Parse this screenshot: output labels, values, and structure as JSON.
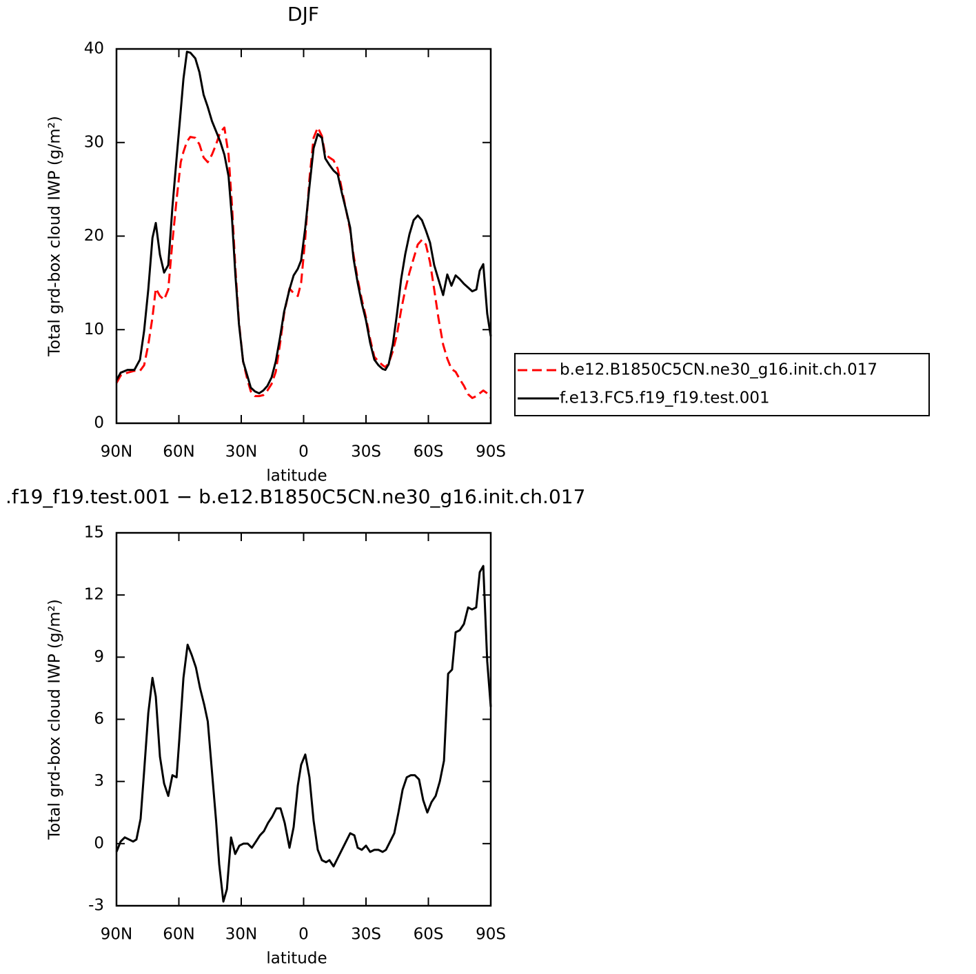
{
  "chart_data": [
    {
      "type": "line",
      "title": "DJF",
      "xlabel": "latitude",
      "ylabel": "Total grd-box cloud IWP (g/m²)",
      "xlim": [
        90,
        -90
      ],
      "ylim": [
        0,
        40
      ],
      "xticks": [
        {
          "value": 90,
          "label": "90N"
        },
        {
          "value": 60,
          "label": "60N"
        },
        {
          "value": 30,
          "label": "30N"
        },
        0,
        {
          "value": -30,
          "label": "30S"
        },
        {
          "value": -60,
          "label": "60S"
        },
        {
          "value": -90,
          "label": "90S"
        }
      ],
      "yticks": [
        0,
        10,
        20,
        30,
        40
      ],
      "legend": "right",
      "x": [
        90,
        88.0,
        84.7,
        81.4,
        78.7,
        76.7,
        74.7,
        72.7,
        71.1,
        69.1,
        67.1,
        65.1,
        63.1,
        61.1,
        59.1,
        57.8,
        56.1,
        54.5,
        52.1,
        50.1,
        48.1,
        46.1,
        44.1,
        42.1,
        40.1,
        38.1,
        36.1,
        34.4,
        32.8,
        31.1,
        29.1,
        27.1,
        25.4,
        23.4,
        21.4,
        19.4,
        17.4,
        15.4,
        13.4,
        11.4,
        9.4,
        6.8,
        4.8,
        2.8,
        1.2,
        -0.8,
        -2.8,
        -4.8,
        -6.8,
        -8.8,
        -10.4,
        -12.4,
        -14.4,
        -16.4,
        -18.4,
        -20.4,
        -22.4,
        -24.0,
        -26.0,
        -28.0,
        -30.0,
        -32.0,
        -34.0,
        -36.0,
        -38.0,
        -39.3,
        -40.9,
        -42.9,
        -44.9,
        -46.9,
        -48.9,
        -50.9,
        -52.9,
        -54.9,
        -56.9,
        -58.8,
        -60.8,
        -62.8,
        -64.8,
        -67.1,
        -69.1,
        -71.1,
        -73.1,
        -75.1,
        -77.1,
        -79.1,
        -81.1,
        -83.1,
        -84.7,
        -86.4,
        -88.3,
        -90
      ],
      "series": [
        {
          "name": "b.e12.B1850C5CN.ne30_g16.init.ch.017",
          "color": "#ff0000",
          "dashed": true,
          "values": [
            4.3,
            5.1,
            5.4,
            5.6,
            5.6,
            6.2,
            8.4,
            11.3,
            14.4,
            13.6,
            13.2,
            14.3,
            19.4,
            23.9,
            27.9,
            29.0,
            30.1,
            30.6,
            30.5,
            29.8,
            28.4,
            27.9,
            28.7,
            29.8,
            31.1,
            31.6,
            28.7,
            23.1,
            16.5,
            10.8,
            6.6,
            4.7,
            3.4,
            2.9,
            2.9,
            3.0,
            3.5,
            4.2,
            5.5,
            8.4,
            11.7,
            14.4,
            13.9,
            13.6,
            15.0,
            19.8,
            26.1,
            30.5,
            31.6,
            30.7,
            28.7,
            28.4,
            28.1,
            27.2,
            25.0,
            22.8,
            20.6,
            18.0,
            15.4,
            13.2,
            11.3,
            9.0,
            7.1,
            6.6,
            6.2,
            6.0,
            6.4,
            7.7,
            9.5,
            12.1,
            14.3,
            16.1,
            17.6,
            19.1,
            19.6,
            19.1,
            17.2,
            14.3,
            11.3,
            8.4,
            6.9,
            5.8,
            5.5,
            4.7,
            4.0,
            3.1,
            2.7,
            2.9,
            3.2,
            3.5,
            3.2,
            2.7
          ]
        },
        {
          "name": "f.e13.FC5.f19_f19.test.001",
          "color": "#000000",
          "dashed": false,
          "values": [
            4.6,
            5.4,
            5.7,
            5.7,
            6.8,
            9.9,
            14.3,
            19.8,
            21.4,
            18.0,
            16.1,
            16.9,
            23.1,
            28.3,
            33.4,
            36.8,
            39.7,
            39.6,
            39.0,
            37.5,
            35.1,
            33.8,
            32.3,
            31.2,
            30.1,
            28.7,
            26.4,
            21.7,
            15.8,
            10.6,
            6.6,
            5.1,
            3.8,
            3.4,
            3.2,
            3.5,
            4.0,
            4.9,
            6.6,
            9.1,
            11.9,
            14.3,
            15.8,
            16.5,
            17.4,
            20.9,
            25.3,
            29.4,
            30.9,
            30.5,
            28.3,
            27.6,
            27.0,
            26.6,
            24.6,
            22.8,
            20.9,
            17.6,
            15.0,
            12.8,
            11.0,
            8.6,
            6.8,
            6.2,
            5.8,
            5.7,
            6.3,
            8.4,
            11.7,
            15.4,
            18.1,
            20.2,
            21.7,
            22.2,
            21.7,
            20.6,
            19.3,
            16.9,
            15.4,
            13.7,
            15.9,
            14.7,
            15.8,
            15.4,
            14.9,
            14.5,
            14.1,
            14.3,
            16.3,
            17.0,
            11.7,
            9.3
          ]
        }
      ]
    },
    {
      "type": "line",
      "title": ".f19_f19.test.001 − b.e12.B1850C5CN.ne30_g16.init.ch.017",
      "xlabel": "latitude",
      "ylabel": "Total grd-box cloud IWP (g/m²)",
      "xlim": [
        90,
        -90
      ],
      "ylim": [
        -3,
        15
      ],
      "xticks": [
        {
          "value": 90,
          "label": "90N"
        },
        {
          "value": 60,
          "label": "60N"
        },
        {
          "value": 30,
          "label": "30N"
        },
        0,
        {
          "value": -30,
          "label": "30S"
        },
        {
          "value": -60,
          "label": "60S"
        },
        {
          "value": -90,
          "label": "90S"
        }
      ],
      "yticks": [
        -3,
        0,
        3,
        6,
        9,
        12,
        15
      ],
      "color": "#000000",
      "x": [
        90,
        88.0,
        86.0,
        84.0,
        82.0,
        80.4,
        78.4,
        76.7,
        74.7,
        72.7,
        71.1,
        69.1,
        67.1,
        65.1,
        63.1,
        61.1,
        59.8,
        57.8,
        55.8,
        53.8,
        51.8,
        49.8,
        47.8,
        46.1,
        44.1,
        42.1,
        40.6,
        38.6,
        36.9,
        34.9,
        32.9,
        30.9,
        28.9,
        26.9,
        24.9,
        22.9,
        21.0,
        19.1,
        17.1,
        15.1,
        13.1,
        11.1,
        9.1,
        6.8,
        4.8,
        2.8,
        1.2,
        -0.8,
        -2.8,
        -4.8,
        -6.8,
        -8.8,
        -10.8,
        -12.4,
        -14.4,
        -16.4,
        -18.4,
        -20.4,
        -22.4,
        -24.4,
        -26,
        -28,
        -30,
        -32,
        -34,
        -36,
        -38,
        -39.6,
        -41.6,
        -43.6,
        -45.6,
        -47.6,
        -49.6,
        -51.5,
        -53.5,
        -55.5,
        -57.5,
        -59.5,
        -61.5,
        -63.5,
        -65.5,
        -67.5,
        -69.5,
        -71.4,
        -73.1,
        -75.1,
        -77.1,
        -79.1,
        -81.0,
        -83.0,
        -84.7,
        -86.4,
        -88.3,
        -90
      ],
      "values": [
        -0.4,
        0.1,
        0.3,
        0.2,
        0.1,
        0.2,
        1.2,
        3.5,
        6.3,
        8.0,
        7.1,
        4.2,
        2.9,
        2.3,
        3.3,
        3.2,
        5.0,
        8.0,
        9.6,
        9.1,
        8.5,
        7.5,
        6.7,
        5.9,
        3.5,
        1.1,
        -1.0,
        -2.8,
        -2.2,
        0.3,
        -0.5,
        -0.1,
        0.0,
        0.0,
        -0.2,
        0.1,
        0.4,
        0.6,
        1.0,
        1.3,
        1.7,
        1.7,
        1.0,
        -0.2,
        0.8,
        2.8,
        3.8,
        4.3,
        3.2,
        1.1,
        -0.3,
        -0.8,
        -0.9,
        -0.8,
        -1.1,
        -0.7,
        -0.3,
        0.1,
        0.5,
        0.4,
        -0.2,
        -0.3,
        -0.1,
        -0.4,
        -0.3,
        -0.3,
        -0.4,
        -0.3,
        0.1,
        0.5,
        1.5,
        2.6,
        3.2,
        3.3,
        3.3,
        3.1,
        2.1,
        1.5,
        2.0,
        2.3,
        3.0,
        4.0,
        8.2,
        8.4,
        10.2,
        10.3,
        10.6,
        11.4,
        11.3,
        11.4,
        13.1,
        13.4,
        8.8,
        6.6
      ]
    }
  ]
}
